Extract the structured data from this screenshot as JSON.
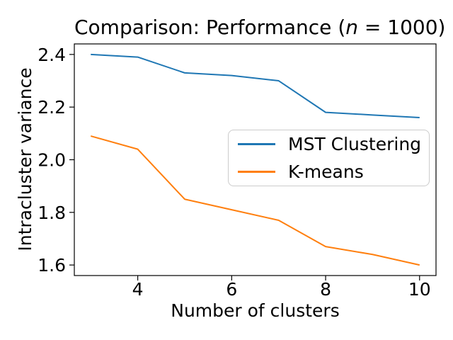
{
  "chart_data": {
    "type": "line",
    "title": "Comparison: Performance (n = 1000)",
    "title_parts": {
      "prefix": "Comparison: Performance (",
      "math_var": "n",
      "suffix": " = 1000)"
    },
    "xlabel": "Number of clusters",
    "ylabel": "Intracluster variance",
    "x": [
      3,
      4,
      5,
      6,
      7,
      8,
      9,
      10
    ],
    "series": [
      {
        "name": "MST Clustering",
        "color": "#1f77b4",
        "values": [
          2.4,
          2.39,
          2.33,
          2.32,
          2.3,
          2.18,
          2.17,
          2.16
        ]
      },
      {
        "name": "K-means",
        "color": "#ff7f0e",
        "values": [
          2.09,
          2.04,
          1.85,
          1.81,
          1.77,
          1.67,
          1.64,
          1.6
        ]
      }
    ],
    "xlim": [
      2.65,
      10.35
    ],
    "ylim": [
      1.56,
      2.44
    ],
    "xticks": {
      "values": [
        4,
        6,
        8,
        10
      ],
      "labels": [
        "4",
        "6",
        "8",
        "10"
      ]
    },
    "yticks": {
      "values": [
        1.6,
        1.8,
        2.0,
        2.2,
        2.4
      ],
      "labels": [
        "1.6",
        "1.8",
        "2.0",
        "2.2",
        "2.4"
      ]
    },
    "grid": false,
    "legend_position": "center right",
    "axis_color": "#000000",
    "background_color": "#ffffff"
  }
}
